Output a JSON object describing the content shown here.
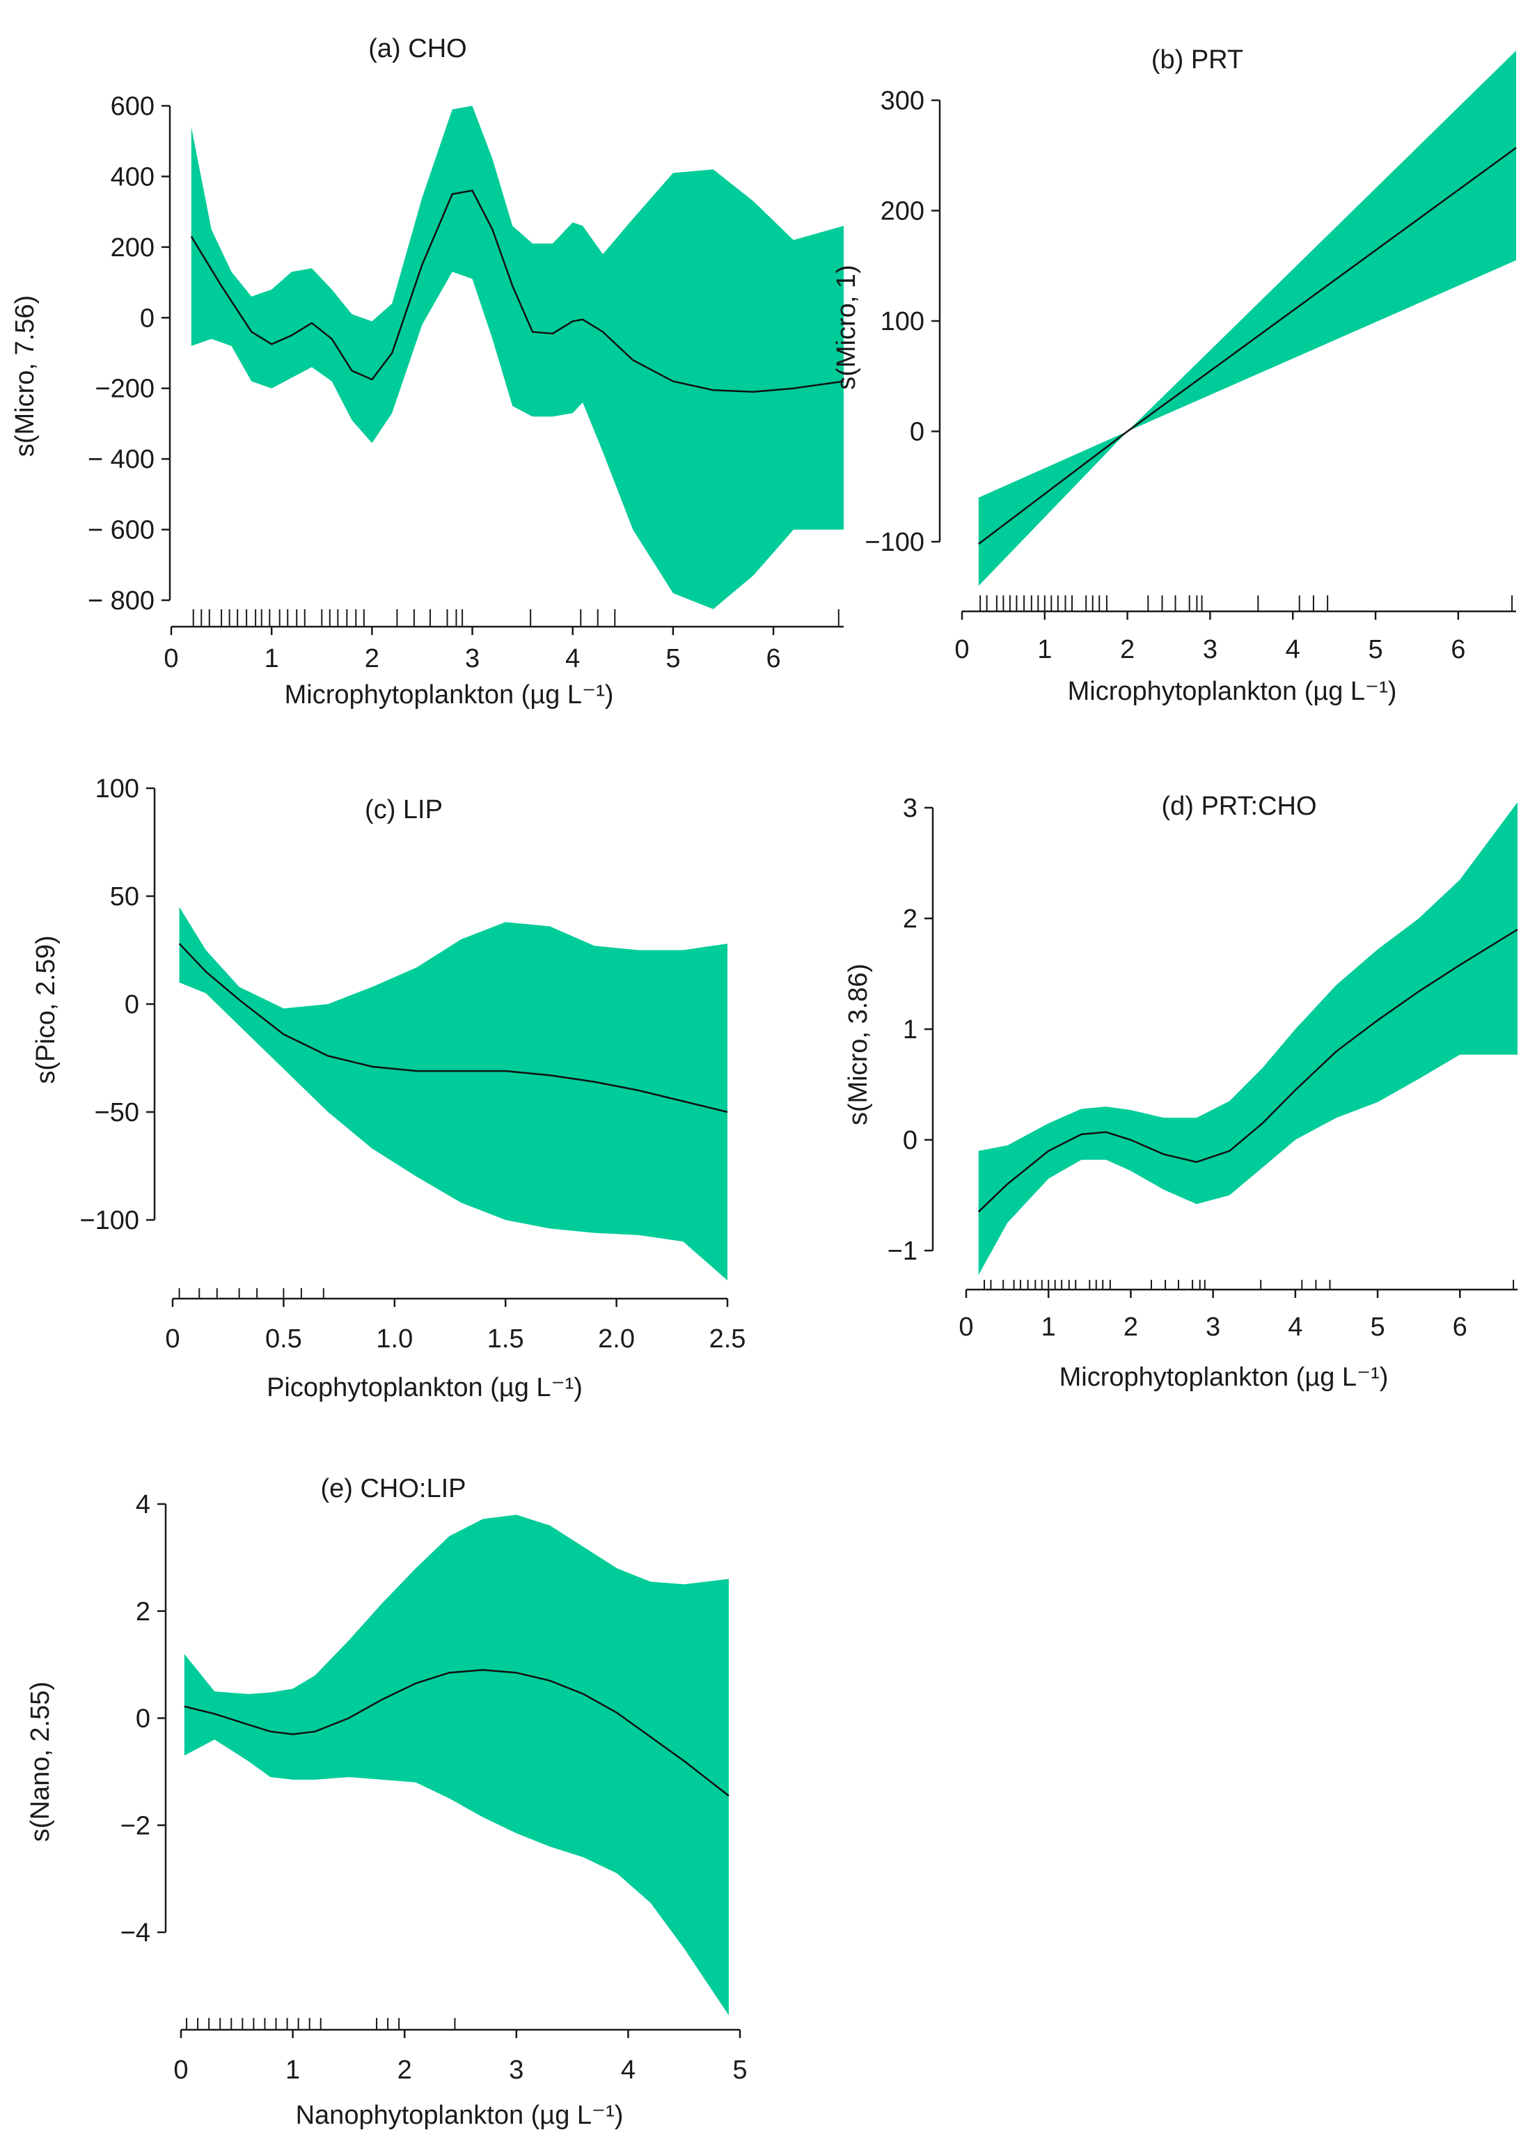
{
  "chart_data": [
    {
      "type": "line",
      "title": "(a) CHO",
      "xlabel": "Microphytoplankton (µg L⁻¹)",
      "ylabel": "s(Micro, 7.56)",
      "xlim": [
        0,
        6.7
      ],
      "ylim": [
        -800,
        600
      ],
      "x_ticks": [
        0,
        1,
        2,
        3,
        4,
        5,
        6
      ],
      "x_tick_labels": [
        "0",
        "1",
        "2",
        "3",
        "4",
        "5",
        "6"
      ],
      "y_ticks": [
        -800,
        -600,
        -400,
        -200,
        0,
        200,
        400,
        600
      ],
      "y_tick_labels": [
        "− 800",
        "− 600",
        "− 400",
        "−200",
        "0",
        "200",
        "400",
        "600"
      ],
      "series": [
        {
          "name": "fit",
          "x": [
            0.2,
            0.5,
            0.8,
            1.0,
            1.2,
            1.4,
            1.6,
            1.8,
            2.0,
            2.2,
            2.5,
            2.8,
            3.0,
            3.2,
            3.4,
            3.6,
            3.8,
            4.0,
            4.1,
            4.3,
            4.6,
            5.0,
            5.4,
            5.8,
            6.2,
            6.7
          ],
          "values": [
            230,
            90,
            -40,
            -75,
            -50,
            -15,
            -60,
            -150,
            -175,
            -100,
            150,
            350,
            360,
            250,
            90,
            -40,
            -45,
            -10,
            -5,
            -40,
            -120,
            -180,
            -205,
            -210,
            -200,
            -180
          ]
        },
        {
          "name": "upper",
          "x": [
            0.2,
            0.4,
            0.6,
            0.8,
            1.0,
            1.2,
            1.4,
            1.6,
            1.8,
            2.0,
            2.2,
            2.5,
            2.8,
            3.0,
            3.2,
            3.4,
            3.6,
            3.8,
            4.0,
            4.1,
            4.3,
            4.6,
            5.0,
            5.4,
            5.8,
            6.2,
            6.7
          ],
          "values": [
            540,
            250,
            130,
            60,
            80,
            130,
            140,
            80,
            10,
            -10,
            40,
            340,
            590,
            600,
            450,
            260,
            210,
            210,
            270,
            260,
            180,
            280,
            410,
            420,
            330,
            220,
            260
          ]
        },
        {
          "name": "lower",
          "x": [
            0.2,
            0.4,
            0.6,
            0.8,
            1.0,
            1.2,
            1.4,
            1.6,
            1.8,
            2.0,
            2.2,
            2.5,
            2.8,
            3.0,
            3.2,
            3.4,
            3.6,
            3.8,
            4.0,
            4.1,
            4.3,
            4.6,
            5.0,
            5.4,
            5.8,
            6.2,
            6.7
          ],
          "values": [
            -80,
            -60,
            -80,
            -180,
            -200,
            -170,
            -140,
            -180,
            -290,
            -355,
            -270,
            -20,
            130,
            110,
            -60,
            -250,
            -280,
            -280,
            -270,
            -240,
            -380,
            -600,
            -780,
            -825,
            -730,
            -600,
            -600
          ]
        }
      ],
      "rug": [
        0.22,
        0.3,
        0.38,
        0.5,
        0.58,
        0.66,
        0.75,
        0.84,
        0.9,
        0.98,
        1.08,
        1.16,
        1.25,
        1.33,
        1.5,
        1.58,
        1.66,
        1.75,
        1.84,
        1.92,
        2.25,
        2.42,
        2.58,
        2.75,
        2.84,
        2.9,
        3.58,
        4.08,
        4.25,
        4.42,
        6.65
      ]
    },
    {
      "type": "line",
      "title": "(b) PRT",
      "xlabel": "Microphytoplankton (µg L⁻¹)",
      "ylabel": "s(Micro, 1)",
      "xlim": [
        0,
        6.7
      ],
      "ylim": [
        -100,
        300
      ],
      "x_ticks": [
        0,
        1,
        2,
        3,
        4,
        5,
        6
      ],
      "x_tick_labels": [
        "0",
        "1",
        "2",
        "3",
        "4",
        "5",
        "6"
      ],
      "y_ticks": [
        -100,
        0,
        100,
        200,
        300
      ],
      "y_tick_labels": [
        "−100",
        "0",
        "100",
        "200",
        "300"
      ],
      "series": [
        {
          "name": "fit",
          "x": [
            0.2,
            2.0,
            6.7
          ],
          "values": [
            -102,
            0,
            257
          ]
        },
        {
          "name": "upper",
          "x": [
            0.2,
            2.0,
            6.7
          ],
          "values": [
            -60,
            0,
            345
          ]
        },
        {
          "name": "lower",
          "x": [
            0.2,
            2.0,
            6.7
          ],
          "values": [
            -140,
            0,
            155
          ]
        }
      ],
      "rug": [
        0.22,
        0.3,
        0.42,
        0.5,
        0.58,
        0.66,
        0.75,
        0.84,
        0.92,
        1.0,
        1.08,
        1.16,
        1.25,
        1.33,
        1.5,
        1.58,
        1.66,
        1.75,
        2.25,
        2.42,
        2.58,
        2.75,
        2.84,
        2.9,
        3.58,
        4.08,
        4.25,
        4.42,
        6.65
      ]
    },
    {
      "type": "line",
      "title": "(c) LIP",
      "xlabel": "Picophytoplankton (µg L⁻¹)",
      "ylabel": "s(Pico, 2.59)",
      "xlim": [
        0,
        2.5
      ],
      "ylim": [
        -100,
        100
      ],
      "x_ticks": [
        0,
        0.5,
        1.0,
        1.5,
        2.0,
        2.5
      ],
      "x_tick_labels": [
        "0",
        "0.5",
        "1.0",
        "1.5",
        "2.0",
        "2.5"
      ],
      "y_ticks": [
        -100,
        -50,
        0,
        50,
        100
      ],
      "y_tick_labels": [
        "−100",
        "−50",
        "0",
        "50",
        "100"
      ],
      "series": [
        {
          "name": "fit",
          "x": [
            0.03,
            0.15,
            0.3,
            0.5,
            0.7,
            0.9,
            1.1,
            1.3,
            1.5,
            1.7,
            1.9,
            2.1,
            2.3,
            2.5
          ],
          "values": [
            28,
            15,
            2,
            -14,
            -24,
            -29,
            -31,
            -31,
            -31,
            -33,
            -36,
            -40,
            -45,
            -50
          ]
        },
        {
          "name": "upper",
          "x": [
            0.03,
            0.15,
            0.3,
            0.5,
            0.7,
            0.9,
            1.1,
            1.3,
            1.5,
            1.7,
            1.9,
            2.1,
            2.3,
            2.5
          ],
          "values": [
            45,
            25,
            8,
            -2,
            0,
            8,
            17,
            30,
            38,
            36,
            27,
            25,
            25,
            28
          ]
        },
        {
          "name": "lower",
          "x": [
            0.03,
            0.15,
            0.3,
            0.5,
            0.7,
            0.9,
            1.1,
            1.3,
            1.5,
            1.7,
            1.9,
            2.1,
            2.3,
            2.5
          ],
          "values": [
            10,
            5,
            -10,
            -30,
            -50,
            -67,
            -80,
            -92,
            -100,
            -104,
            -106,
            -107,
            -110,
            -128
          ]
        }
      ],
      "rug": [
        0.03,
        0.12,
        0.2,
        0.3,
        0.38,
        0.5,
        0.58,
        0.68
      ]
    },
    {
      "type": "line",
      "title": "(d) PRT:CHO",
      "xlabel": "Microphytoplankton (µg L⁻¹)",
      "ylabel": "s(Micro, 3.86)",
      "xlim": [
        0,
        6.7
      ],
      "ylim": [
        -1,
        3
      ],
      "x_ticks": [
        0,
        1,
        2,
        3,
        4,
        5,
        6
      ],
      "x_tick_labels": [
        "0",
        "1",
        "2",
        "3",
        "4",
        "5",
        "6"
      ],
      "y_ticks": [
        -1,
        0,
        1,
        2,
        3
      ],
      "y_tick_labels": [
        "−1",
        "0",
        "1",
        "2",
        "3"
      ],
      "series": [
        {
          "name": "fit",
          "x": [
            0.15,
            0.5,
            1.0,
            1.4,
            1.7,
            2.0,
            2.4,
            2.8,
            3.2,
            3.6,
            4.0,
            4.5,
            5.0,
            5.5,
            6.0,
            6.7
          ],
          "values": [
            -0.65,
            -0.4,
            -0.1,
            0.05,
            0.07,
            0.0,
            -0.13,
            -0.2,
            -0.1,
            0.15,
            0.45,
            0.8,
            1.08,
            1.34,
            1.58,
            1.9
          ]
        },
        {
          "name": "upper",
          "x": [
            0.15,
            0.5,
            1.0,
            1.4,
            1.7,
            2.0,
            2.4,
            2.8,
            3.2,
            3.6,
            4.0,
            4.5,
            5.0,
            5.5,
            6.0,
            6.7
          ],
          "values": [
            -0.1,
            -0.05,
            0.15,
            0.28,
            0.3,
            0.27,
            0.2,
            0.2,
            0.35,
            0.65,
            1.0,
            1.4,
            1.72,
            2.0,
            2.35,
            3.05
          ]
        },
        {
          "name": "lower",
          "x": [
            0.15,
            0.5,
            1.0,
            1.4,
            1.7,
            2.0,
            2.4,
            2.8,
            3.2,
            3.6,
            4.0,
            4.5,
            5.0,
            5.5,
            6.0,
            6.7
          ],
          "values": [
            -1.22,
            -0.75,
            -0.35,
            -0.18,
            -0.18,
            -0.28,
            -0.45,
            -0.58,
            -0.5,
            -0.25,
            0.0,
            0.2,
            0.34,
            0.55,
            0.77,
            0.77
          ]
        }
      ],
      "rug": [
        0.22,
        0.3,
        0.45,
        0.58,
        0.66,
        0.75,
        0.84,
        0.92,
        1.0,
        1.08,
        1.16,
        1.25,
        1.33,
        1.5,
        1.58,
        1.66,
        1.75,
        2.25,
        2.42,
        2.58,
        2.75,
        2.84,
        2.9,
        3.58,
        4.08,
        4.25,
        4.42,
        6.65
      ]
    },
    {
      "type": "line",
      "title": "(e) CHO:LIP",
      "xlabel": "Nanophytoplankton (µg L⁻¹)",
      "ylabel": "s(Nano, 2.55)",
      "xlim": [
        0,
        5
      ],
      "ylim": [
        -4,
        4
      ],
      "x_ticks": [
        0,
        1,
        2,
        3,
        4,
        5
      ],
      "x_tick_labels": [
        "0",
        "1",
        "2",
        "3",
        "4",
        "5"
      ],
      "y_ticks": [
        -4,
        -2,
        0,
        2,
        4
      ],
      "y_tick_labels": [
        "−4",
        "−2",
        "0",
        "2",
        "4"
      ],
      "series": [
        {
          "name": "fit",
          "x": [
            0.03,
            0.3,
            0.6,
            0.8,
            1.0,
            1.2,
            1.5,
            1.8,
            2.1,
            2.4,
            2.7,
            3.0,
            3.3,
            3.6,
            3.9,
            4.2,
            4.5,
            4.9
          ],
          "values": [
            0.22,
            0.08,
            -0.12,
            -0.25,
            -0.3,
            -0.25,
            0.0,
            0.35,
            0.65,
            0.85,
            0.9,
            0.85,
            0.7,
            0.45,
            0.1,
            -0.35,
            -0.8,
            -1.45
          ]
        },
        {
          "name": "upper",
          "x": [
            0.03,
            0.3,
            0.6,
            0.8,
            1.0,
            1.2,
            1.5,
            1.8,
            2.1,
            2.4,
            2.7,
            3.0,
            3.3,
            3.6,
            3.9,
            4.2,
            4.5,
            4.9
          ],
          "values": [
            1.2,
            0.5,
            0.45,
            0.48,
            0.55,
            0.8,
            1.45,
            2.15,
            2.8,
            3.4,
            3.72,
            3.8,
            3.6,
            3.2,
            2.8,
            2.55,
            2.5,
            2.6
          ]
        },
        {
          "name": "lower",
          "x": [
            0.03,
            0.3,
            0.6,
            0.8,
            1.0,
            1.2,
            1.5,
            1.8,
            2.1,
            2.4,
            2.7,
            3.0,
            3.3,
            3.6,
            3.9,
            4.2,
            4.5,
            4.9
          ],
          "values": [
            -0.7,
            -0.4,
            -0.8,
            -1.1,
            -1.15,
            -1.15,
            -1.1,
            -1.15,
            -1.2,
            -1.5,
            -1.85,
            -2.15,
            -2.4,
            -2.6,
            -2.9,
            -3.45,
            -4.3,
            -5.55
          ]
        }
      ],
      "rug": [
        0.05,
        0.15,
        0.25,
        0.35,
        0.45,
        0.55,
        0.65,
        0.75,
        0.85,
        0.95,
        1.05,
        1.15,
        1.25,
        1.75,
        1.85,
        1.95,
        2.45
      ]
    }
  ],
  "colors": {
    "band": "#00cc99",
    "line": "#111111",
    "axis": "#1a1a1a"
  }
}
